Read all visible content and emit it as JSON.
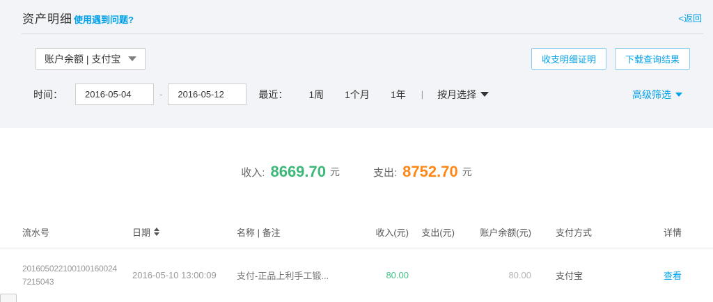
{
  "header": {
    "title": "资产明细",
    "help_link": "使用遇到问题?",
    "back_link": "<返回"
  },
  "filters": {
    "account_select_value": "账户余额 | 支付宝",
    "proof_button": "收支明细证明",
    "download_button": "下载查询结果",
    "time_label": "时间：",
    "date_from": "2016-05-04",
    "date_separator": "-",
    "date_to": "2016-05-12",
    "recent_label": "最近：",
    "recent_options": [
      "1周",
      "1个月",
      "1年"
    ],
    "options_separator": "|",
    "month_select_label": "按月选择",
    "advanced_filter_label": "高级筛选"
  },
  "summary": {
    "income_label": "收入:",
    "income_value": "8669.70",
    "expense_label": "支出:",
    "expense_value": "8752.70",
    "unit": "元"
  },
  "table": {
    "columns": {
      "serial": "流水号",
      "date": "日期",
      "name": "名称 | 备注",
      "income": "收入(元)",
      "expense": "支出(元)",
      "balance": "账户余额(元)",
      "method": "支付方式",
      "detail": "详情"
    },
    "rows": [
      {
        "serial": "2016050221001001600247215043",
        "date": "2016-05-10 13:00:09",
        "name": "支付-正品上利手工锻...",
        "income": "80.00",
        "expense": "",
        "balance": "80.00",
        "method": "支付宝",
        "detail_link": "查看"
      }
    ]
  },
  "icons": {
    "account_caret": "triangle-down",
    "month_caret": "triangle-down",
    "advanced_caret": "triangle-down",
    "date_sort": "sort-up-down"
  },
  "colors": {
    "accent_blue": "#00a0e9",
    "income_green": "#3cb878",
    "expense_orange": "#ff8716",
    "top_section_bg": "#f3f4f8"
  }
}
